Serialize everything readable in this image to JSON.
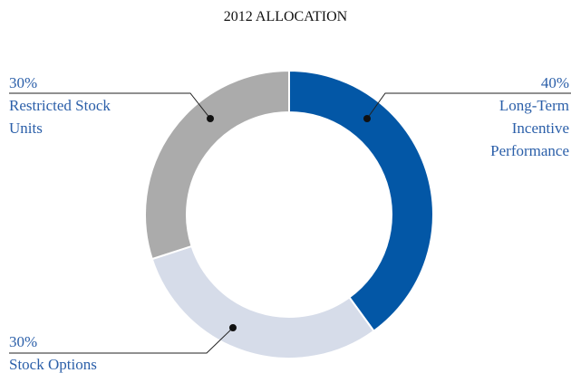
{
  "chart_data": {
    "type": "donut",
    "title": "2012 ALLOCATION",
    "categories": [
      "Long-Term Incentive Performance",
      "Stock Options",
      "Restricted Stock Units"
    ],
    "values": [
      40,
      30,
      30
    ],
    "value_labels": [
      "40%",
      "30%",
      "30%"
    ],
    "colors": [
      "#0357a6",
      "#d6dce9",
      "#ababab"
    ]
  }
}
